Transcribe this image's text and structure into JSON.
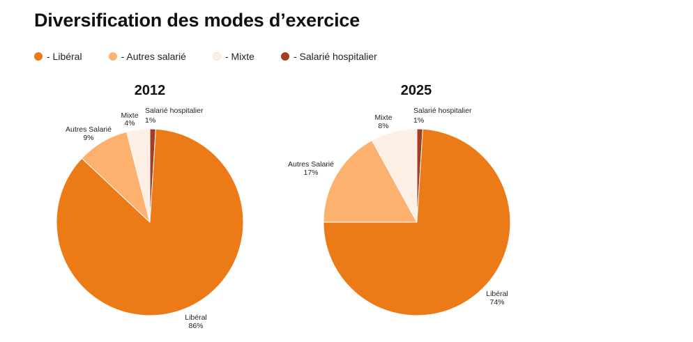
{
  "colors": {
    "liberal": "#ec7a17",
    "autres_salarie": "#fdb16e",
    "mixte": "#fdefe3",
    "salarie_hospitalier": "#a33e22"
  },
  "chart_data": {
    "type": "pie",
    "title": "Diversification des modes d’exercice",
    "legend": [
      {
        "label": "- Libéral",
        "color": "#ec7a17"
      },
      {
        "label": "- Autres salarié",
        "color": "#fdb16e"
      },
      {
        "label": "- Mixte",
        "color": "#fdefe3"
      },
      {
        "label": "- Salarié hospitalier",
        "color": "#a33e22"
      }
    ],
    "pies": [
      {
        "title": "2012",
        "slices": [
          {
            "name": "Salarié hospitalier",
            "value": 1,
            "label": "1%",
            "color": "#a33e22"
          },
          {
            "name": "Libéral",
            "value": 86,
            "label": "86%",
            "color": "#ec7a17"
          },
          {
            "name": "Autres Salarié",
            "value": 9,
            "label": "9%",
            "color": "#fdb16e"
          },
          {
            "name": "Mixte",
            "value": 4,
            "label": "4%",
            "color": "#fdefe3"
          }
        ]
      },
      {
        "title": "2025",
        "slices": [
          {
            "name": "Salarié hospitalier",
            "value": 1,
            "label": "1%",
            "color": "#a33e22"
          },
          {
            "name": "Libéral",
            "value": 74,
            "label": "74%",
            "color": "#ec7a17"
          },
          {
            "name": "Autres Salarié",
            "value": 17,
            "label": "17%",
            "color": "#fdb16e"
          },
          {
            "name": "Mixte",
            "value": 8,
            "label": "8%",
            "color": "#fdefe3"
          }
        ]
      }
    ]
  }
}
